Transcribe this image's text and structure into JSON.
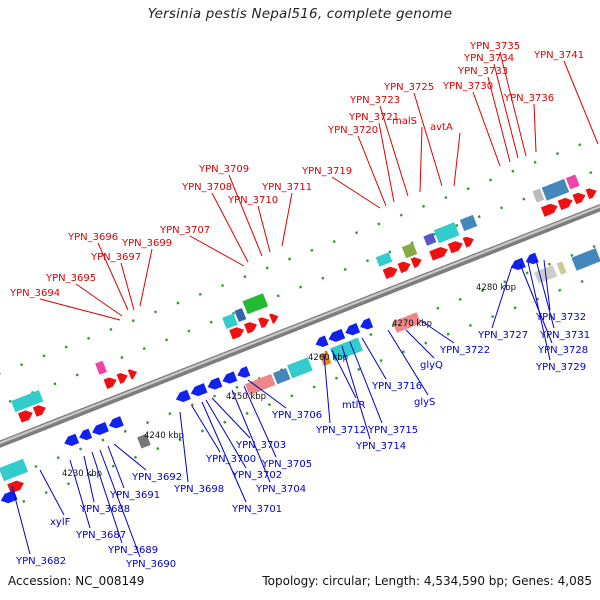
{
  "title": "Yersinia pestis Nepal516, complete genome",
  "footer": {
    "accession": "Accession: NC_008149",
    "topology": "Topology: circular; Length: 4,534,590 bp; Genes: 4,085"
  },
  "colors": {
    "top_strand_label": "#dd0000",
    "bottom_strand_label": "#0000cc",
    "backbone": "#8a8a8a"
  },
  "ticks": [
    {
      "label": "4230 kbp"
    },
    {
      "label": "4240 kbp"
    },
    {
      "label": "4250 kbp"
    },
    {
      "label": "4260 kbp"
    },
    {
      "label": "4270 kbp"
    },
    {
      "label": "4280 kbp"
    }
  ],
  "top_labels": [
    "YPN_3694",
    "YPN_3695",
    "YPN_3696",
    "YPN_3697",
    "YPN_3699",
    "YPN_3707",
    "YPN_3708",
    "YPN_3709",
    "YPN_3710",
    "YPN_3711",
    "YPN_3719",
    "YPN_3720",
    "YPN_3721",
    "YPN_3723",
    "malS",
    "YPN_3725",
    "avtA",
    "YPN_3730",
    "YPN_3733",
    "YPN_3734",
    "YPN_3735",
    "YPN_3736",
    "YPN_3741"
  ],
  "bottom_labels": [
    "YPN_3682",
    "xylF",
    "YPN_3687",
    "YPN_3688",
    "YPN_3689",
    "YPN_3690",
    "YPN_3691",
    "YPN_3692",
    "YPN_3698",
    "YPN_3700",
    "YPN_3701",
    "YPN_3702",
    "YPN_3703",
    "YPN_3704",
    "YPN_3705",
    "YPN_3706",
    "YPN_3712",
    "mtlR",
    "YPN_3714",
    "YPN_3715",
    "YPN_3716",
    "glyS",
    "glyQ",
    "YPN_3722",
    "YPN_3727",
    "YPN_3728",
    "YPN_3729",
    "YPN_3731",
    "YPN_3732"
  ]
}
